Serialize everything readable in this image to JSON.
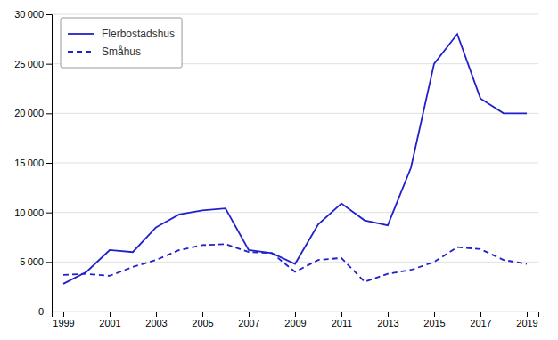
{
  "chart_data": {
    "type": "line",
    "x": [
      1999,
      2000,
      2001,
      2002,
      2003,
      2004,
      2005,
      2006,
      2007,
      2008,
      2009,
      2010,
      2011,
      2012,
      2013,
      2014,
      2015,
      2016,
      2017,
      2018,
      2019
    ],
    "series": [
      {
        "name": "Flerbostadshus",
        "color": "#2121cc",
        "line_style": "solid",
        "values": [
          2800,
          4000,
          6200,
          6000,
          8500,
          9800,
          10200,
          10400,
          6200,
          5900,
          4800,
          8800,
          10900,
          9200,
          8700,
          14500,
          25000,
          28000,
          21500,
          20000,
          20000
        ]
      },
      {
        "name": "Småhus",
        "color": "#2121cc",
        "line_style": "dashed",
        "values": [
          3700,
          3800,
          3600,
          4500,
          5200,
          6200,
          6700,
          6800,
          6000,
          5900,
          4000,
          5200,
          5400,
          3000,
          3800,
          4200,
          5000,
          6500,
          6300,
          5200,
          4800
        ]
      }
    ],
    "xlim": [
      1998.5,
      2019.5
    ],
    "xticks": [
      1999,
      2001,
      2003,
      2005,
      2007,
      2009,
      2011,
      2013,
      2015,
      2017,
      2019
    ],
    "ylim": [
      0,
      30000
    ],
    "yticks": [
      0,
      {
        "value": 5000,
        "label": "5 000"
      },
      {
        "value": 10000,
        "label": "10 000"
      },
      {
        "value": 15000,
        "label": "15 000"
      },
      {
        "value": 20000,
        "label": "20 000"
      },
      {
        "value": 25000,
        "label": "25 000"
      },
      {
        "value": 30000,
        "label": "30 000"
      }
    ],
    "grid": true,
    "legend": "upper left"
  }
}
